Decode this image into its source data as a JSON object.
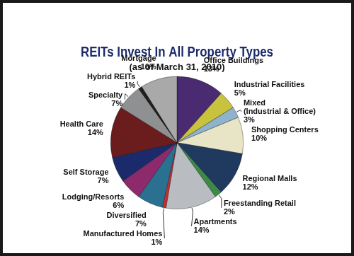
{
  "chart_data": {
    "type": "pie",
    "title": "REITs Invest In All Property Types",
    "subtitle": "(as of March 31, 2010)",
    "categories": [
      "Office Buildings",
      "Industrial Facilities",
      "Mixed (Industrial & Office)",
      "Shopping Centers",
      "Regional Malls",
      "Freestanding Retail",
      "Apartments",
      "Manufactured Homes",
      "Diversified",
      "Lodging/Resorts",
      "Self Storage",
      "Health Care",
      "Specialty",
      "Hybrid REITs",
      "Mortgage"
    ],
    "values": [
      13,
      5,
      3,
      10,
      12,
      2,
      14,
      1,
      7,
      6,
      7,
      14,
      7,
      1,
      10
    ],
    "value_labels": [
      "13%",
      "5%",
      "3%",
      "10%",
      "12%",
      "2%",
      "14%",
      "1%",
      "7%",
      "6%",
      "7%",
      "14%",
      "7%",
      "1%",
      "10%"
    ],
    "colors": [
      "#4a2a70",
      "#c9c23e",
      "#8fb3cc",
      "#e8e4c6",
      "#1f3a5e",
      "#3c8a48",
      "#b9bdc1",
      "#c23030",
      "#2a7191",
      "#8c2a6c",
      "#1b2a6a",
      "#6b1c1c",
      "#8f9091",
      "#1f1f1f",
      "#a9a9a9"
    ],
    "data_labels": true
  }
}
